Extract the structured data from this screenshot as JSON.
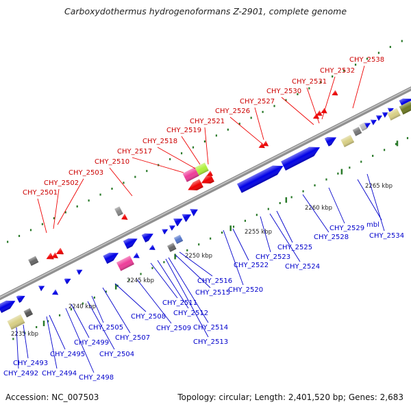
{
  "title": "Carboxydothermus hydrogenoformans Z-2901, complete genome",
  "footer": {
    "accession": "Accession: NC_007503",
    "topology": "Topology: circular; Length: 2,401,520 bp; Genes: 2,683"
  },
  "colors": {
    "backbone": "#909090",
    "forward_strand": "#0000e6",
    "reverse_strand": "#ee0000",
    "forward_label": "#0000cc",
    "reverse_label": "#cc0000",
    "tick_green": "#2a7a2a",
    "pink": "#ee3c99",
    "lime": "#aef03a",
    "khaki": "#d8cf84",
    "steel": "#5577cc",
    "olive": "#6e7a22"
  },
  "scale_labels": [
    "2235 kbp",
    "2240 kbp",
    "2245 kbp",
    "2250 kbp",
    "2255 kbp",
    "2260 kbp",
    "2265 kbp"
  ],
  "top_labels": [
    "CHY_2501",
    "CHY_2502",
    "CHY_2503",
    "CHY_2510",
    "CHY_2517",
    "CHY_2518",
    "CHY_2519",
    "CHY_2521",
    "CHY_2526",
    "CHY_2527",
    "CHY_2530",
    "CHY_2531",
    "CHY_2532",
    "CHY_2538"
  ],
  "bottom_labels": [
    "CHY_2492",
    "CHY_2493",
    "CHY_2494",
    "CHY_2495",
    "CHY_2498",
    "CHY_2499",
    "CHY_2504",
    "CHY_2505",
    "CHY_2507",
    "CHY_2508",
    "CHY_2509",
    "CHY_2511",
    "CHY_2512",
    "CHY_2513",
    "CHY_2514",
    "CHY_2515",
    "CHY_2516",
    "CHY_2520",
    "CHY_2522",
    "CHY_2523",
    "CHY_2524",
    "CHY_2525",
    "CHY_2528",
    "CHY_2529",
    "mbl",
    "CHY_2534"
  ]
}
